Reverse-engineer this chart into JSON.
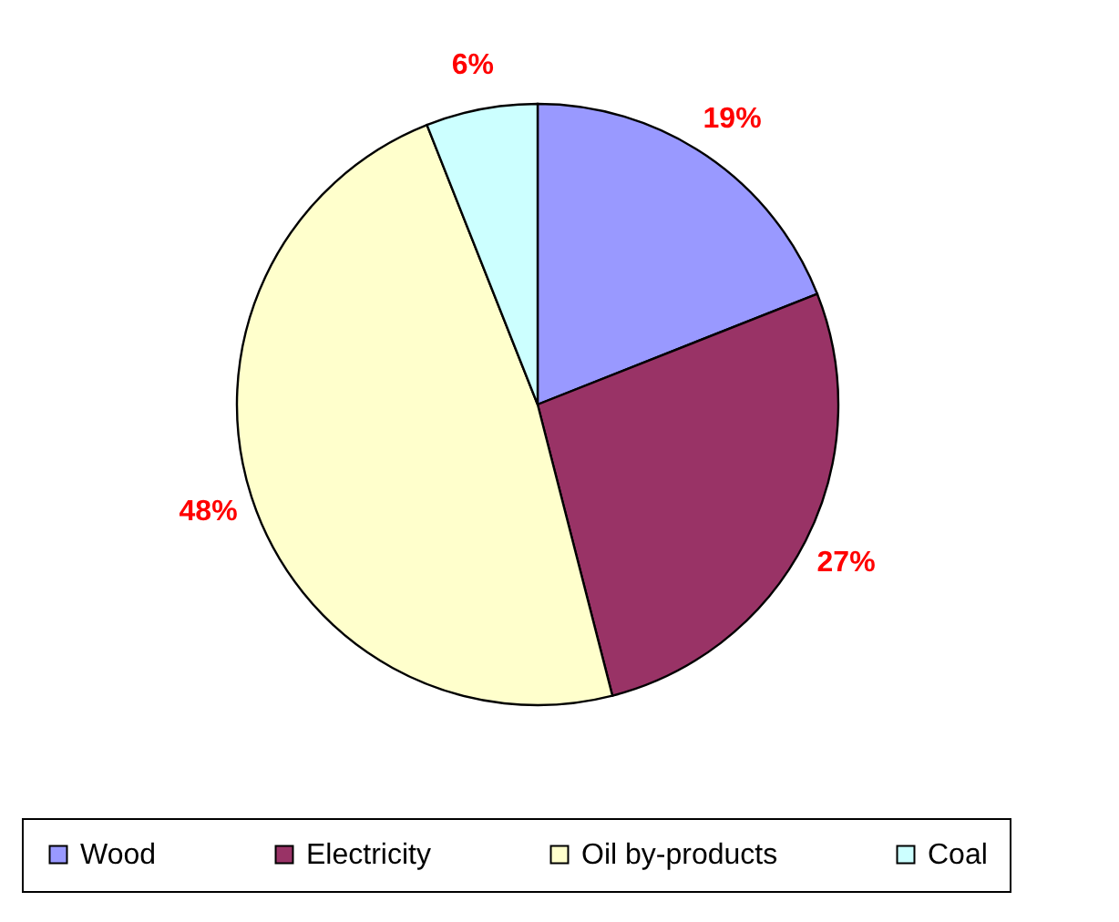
{
  "chart_data": {
    "type": "pie",
    "categories": [
      "Wood",
      "Electricity",
      "Oil by-products",
      "Coal"
    ],
    "values": [
      19,
      27,
      48,
      6
    ],
    "colors": [
      "#9999ff",
      "#993366",
      "#ffffcc",
      "#ccffff"
    ],
    "value_labels": [
      "19%",
      "27%",
      "48%",
      "6%"
    ],
    "legend": "bottom"
  }
}
